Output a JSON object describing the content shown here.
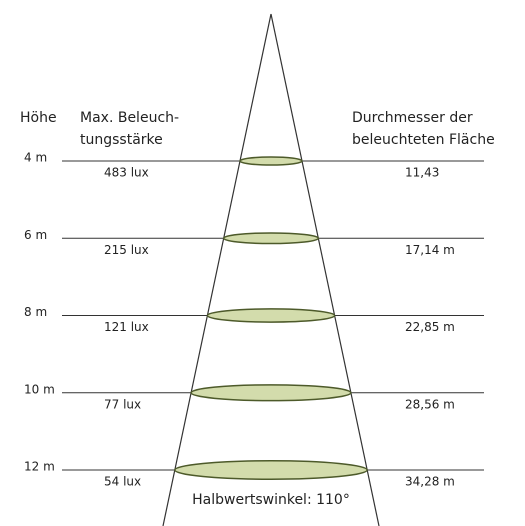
{
  "header": {
    "height": "Höhe",
    "illuminance": [
      "Max. Beleuch-",
      "tungsstärke"
    ],
    "diameter": [
      "Durchmesser der",
      "beleuchteten Fläche"
    ]
  },
  "rows": [
    {
      "height": "4 m",
      "illuminance": "483 lux",
      "diameter": "11,43"
    },
    {
      "height": "6 m",
      "illuminance": "215 lux",
      "diameter": "17,14 m"
    },
    {
      "height": "8 m",
      "illuminance": "121 lux",
      "diameter": "22,85 m"
    },
    {
      "height": "10 m",
      "illuminance": "77 lux",
      "diameter": "28,56 m"
    },
    {
      "height": "12 m",
      "illuminance": "54 lux",
      "diameter": "34,28 m"
    }
  ],
  "footer": "Halbwertswinkel: 110°"
}
